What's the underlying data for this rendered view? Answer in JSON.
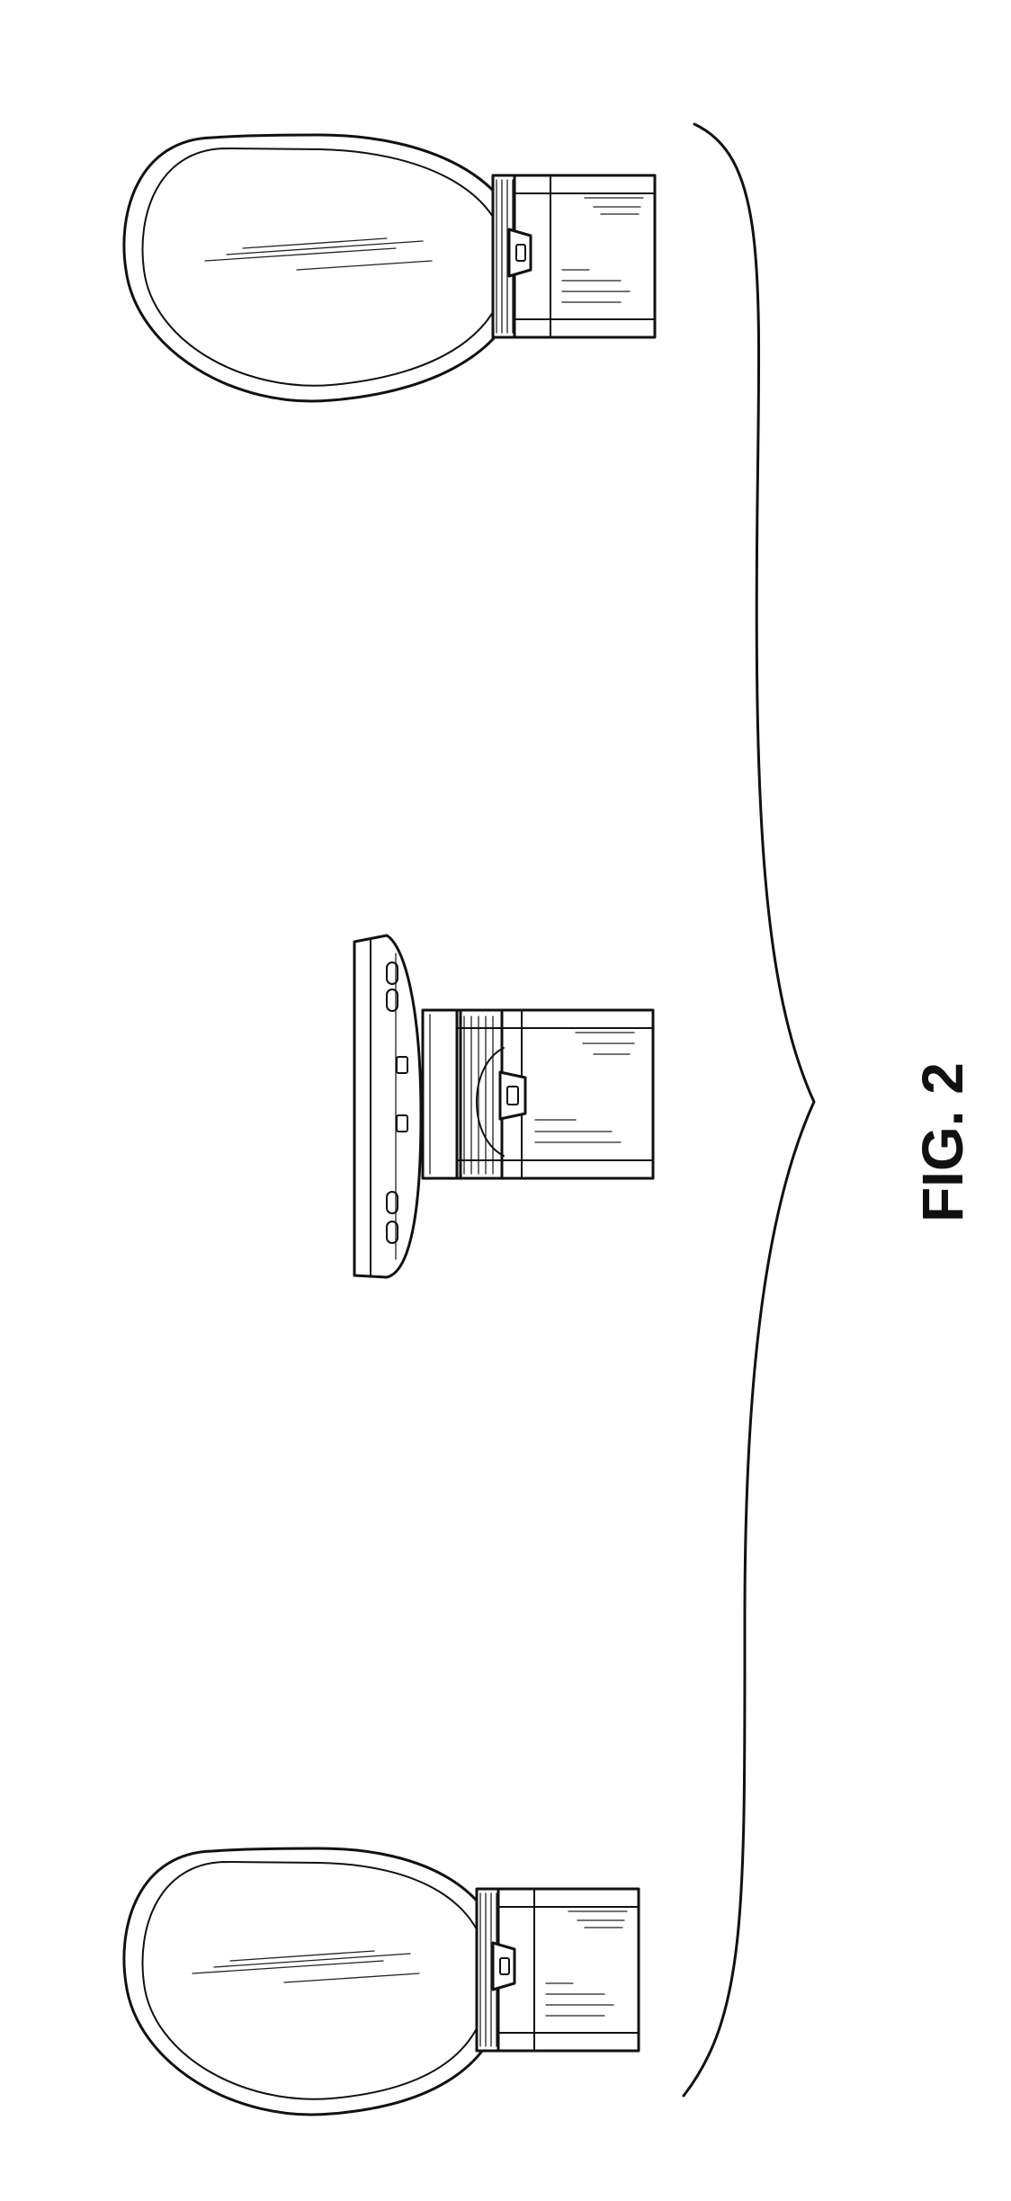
{
  "figure": {
    "label": "FIG. 2"
  },
  "views": [
    {
      "view": "top"
    },
    {
      "view": "middle"
    },
    {
      "view": "bottom"
    }
  ]
}
